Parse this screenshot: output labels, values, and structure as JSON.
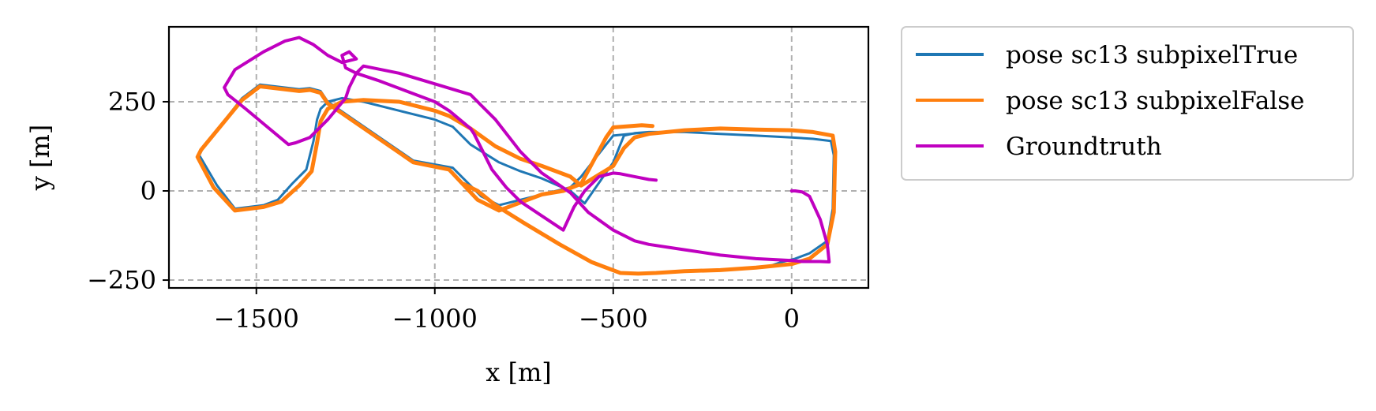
{
  "chart_data": {
    "type": "line",
    "title": "",
    "xlabel": "x [m]",
    "ylabel": "y [m]",
    "xlim": [
      -1745,
      215
    ],
    "ylim": [
      -272,
      460
    ],
    "xticks": [
      -1500,
      -1000,
      -500,
      0
    ],
    "xtick_labels": [
      "−1500",
      "−1000",
      "−500",
      "0"
    ],
    "yticks": [
      -250,
      0,
      250
    ],
    "ytick_labels": [
      "−250",
      "0",
      "250"
    ],
    "grid": true,
    "legend_position": "outside-right-top",
    "series": [
      {
        "name": "pose sc13 subpixelTrue",
        "color": "#1f77b4",
        "line_width": 3,
        "x": [
          -390,
          -420,
          -500,
          -520,
          -590,
          -620,
          -680,
          -820,
          -870,
          -950,
          -1060,
          -1300,
          -1320,
          -1350,
          -1380,
          -1490,
          -1540,
          -1650,
          -1660,
          -1610,
          -1560,
          -1480,
          -1440,
          -1400,
          -1360,
          -1340,
          -1330,
          -1320,
          -1300,
          -1260,
          -1200,
          -1100,
          -1000,
          -950,
          -900,
          -820,
          -760,
          -700,
          -620,
          -580,
          -500,
          -480,
          -470,
          -440,
          -400,
          -300,
          -200,
          -100,
          0,
          60,
          110,
          118,
          115,
          100,
          50,
          10,
          -30,
          -60
        ],
        "y": [
          162,
          163,
          155,
          130,
          40,
          10,
          -5,
          -40,
          -15,
          65,
          85,
          250,
          280,
          288,
          285,
          298,
          260,
          120,
          100,
          15,
          -50,
          -40,
          -25,
          20,
          60,
          140,
          200,
          230,
          250,
          260,
          250,
          225,
          200,
          180,
          130,
          80,
          55,
          35,
          0,
          -35,
          80,
          130,
          155,
          162,
          165,
          165,
          160,
          155,
          150,
          146,
          140,
          100,
          -50,
          -140,
          -175,
          -190,
          -200,
          -210
        ]
      },
      {
        "name": "pose sc13 subpixelFalse",
        "color": "#ff7f0e",
        "line_width": 5,
        "x": [
          -390,
          -420,
          -500,
          -520,
          -590,
          -640,
          -700,
          -820,
          -880,
          -960,
          -1060,
          -1300,
          -1320,
          -1350,
          -1380,
          -1490,
          -1540,
          -1655,
          -1665,
          -1620,
          -1560,
          -1480,
          -1430,
          -1380,
          -1345,
          -1330,
          -1320,
          -1300,
          -1260,
          -1200,
          -1100,
          -1000,
          -960,
          -900,
          -830,
          -760,
          -700,
          -620,
          -590,
          -500,
          -470,
          -440,
          -400,
          -300,
          -200,
          -100,
          0,
          60,
          115,
          122,
          118,
          100,
          50,
          0,
          -50,
          -100,
          -200,
          -300,
          -380,
          -430,
          -480,
          -560,
          -650,
          -750,
          -830,
          -880,
          -920
        ],
        "y": [
          182,
          184,
          178,
          150,
          20,
          0,
          -10,
          -55,
          -25,
          60,
          80,
          245,
          275,
          283,
          280,
          293,
          255,
          115,
          95,
          10,
          -55,
          -45,
          -30,
          15,
          55,
          135,
          195,
          230,
          250,
          255,
          250,
          225,
          210,
          175,
          125,
          90,
          70,
          40,
          15,
          70,
          120,
          150,
          160,
          170,
          175,
          172,
          170,
          165,
          155,
          110,
          -60,
          -150,
          -190,
          -205,
          -210,
          -215,
          -222,
          -225,
          -230,
          -232,
          -230,
          -200,
          -150,
          -90,
          -40,
          0,
          20
        ]
      },
      {
        "name": "Groundtruth",
        "color": "#c000c0",
        "line_width": 4,
        "x": [
          -380,
          -400,
          -440,
          -480,
          -500,
          -540,
          -580,
          -610,
          -640,
          -700,
          -760,
          -800,
          -840,
          -870,
          -890,
          -900,
          -930,
          -960,
          -1000,
          -1080,
          -1160,
          -1220,
          -1250,
          -1260,
          -1240,
          -1220,
          -1260,
          -1300,
          -1340,
          -1380,
          -1420,
          -1480,
          -1560,
          -1590,
          -1580,
          -1530,
          -1470,
          -1410,
          -1390,
          -1350,
          -1300,
          -1250,
          -1240,
          -1220,
          -1200,
          -1100,
          -1000,
          -900,
          -870,
          -830,
          -760,
          -700,
          -620,
          -570,
          -500,
          -440,
          -400,
          -300,
          -200,
          -100,
          0,
          30,
          80,
          105,
          100,
          80,
          50,
          30,
          10,
          0
        ],
        "y": [
          30,
          32,
          40,
          48,
          50,
          40,
          0,
          -45,
          -110,
          -70,
          -30,
          10,
          60,
          120,
          160,
          175,
          200,
          225,
          250,
          280,
          310,
          330,
          345,
          380,
          390,
          370,
          360,
          380,
          410,
          430,
          420,
          390,
          340,
          290,
          270,
          230,
          180,
          130,
          135,
          150,
          200,
          260,
          290,
          330,
          350,
          330,
          300,
          270,
          240,
          200,
          110,
          50,
          -5,
          -60,
          -110,
          -140,
          -150,
          -165,
          -180,
          -190,
          -195,
          -198,
          -198,
          -199,
          -150,
          -80,
          -15,
          -3,
          0,
          0
        ]
      }
    ]
  }
}
